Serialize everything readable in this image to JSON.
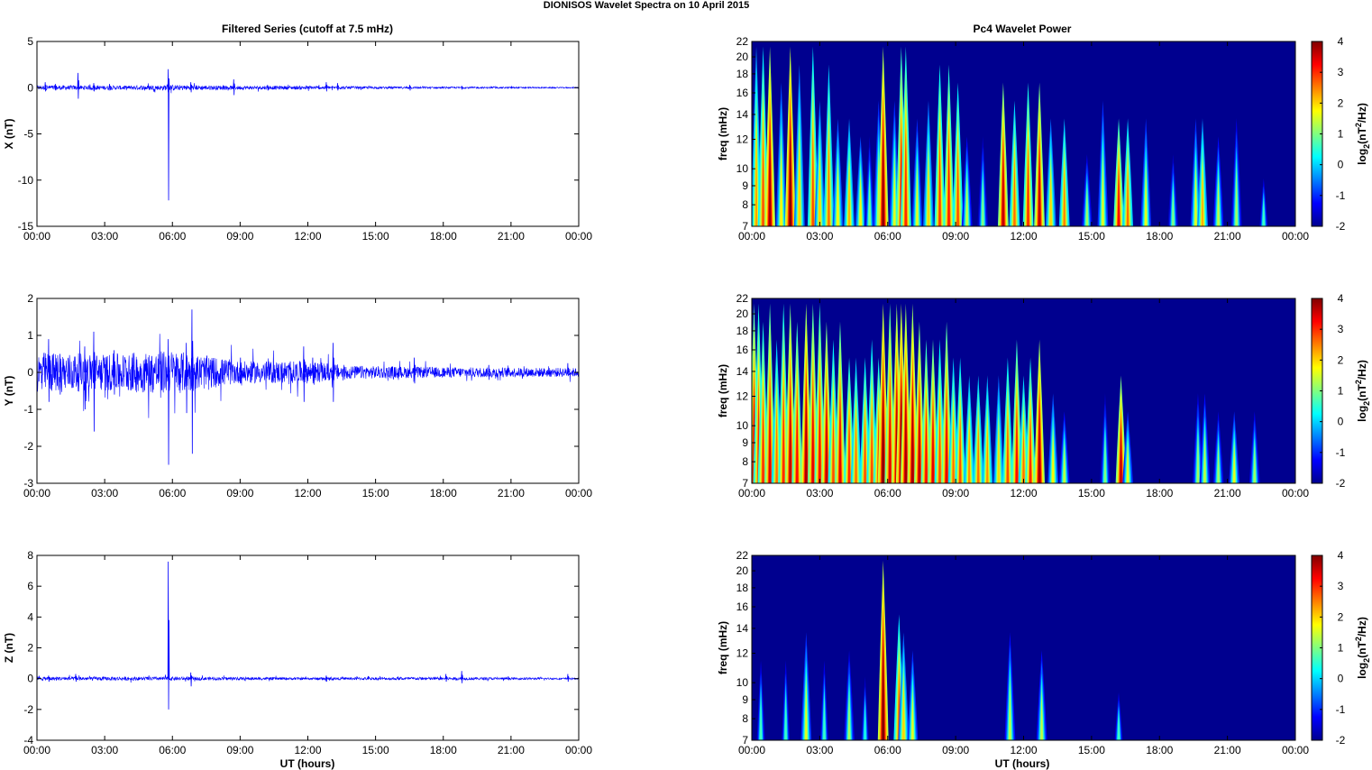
{
  "figure": {
    "main_title": "DIONISOS Wavelet Spectra on 10 April     2015",
    "left_title": "Filtered Series (cutoff at 7.5 mHz)",
    "right_title": "Pc4 Wavelet Power",
    "xlabel": "UT (hours)"
  },
  "colors": {
    "trace": "#0000ff",
    "axis": "#000000",
    "bg_spectrum": "#00008f"
  },
  "chart_data": [
    {
      "type": "line",
      "name": "x-series",
      "ylabel": "X (nT)",
      "x_ticks": [
        "00:00",
        "03:00",
        "06:00",
        "09:00",
        "12:00",
        "15:00",
        "18:00",
        "21:00",
        "00:00"
      ],
      "xlim": [
        0,
        24
      ],
      "ylim": [
        -15,
        5
      ],
      "y_ticks": [
        5,
        0,
        -5,
        -10,
        -15
      ],
      "spikes": [
        [
          0.35,
          0.6,
          -0.4
        ],
        [
          0.8,
          0.4,
          -0.3
        ],
        [
          1.8,
          1.6,
          -1.2
        ],
        [
          2.5,
          0.5,
          -0.4
        ],
        [
          3.2,
          0.4,
          -0.3
        ],
        [
          5.8,
          2.0,
          -12.2
        ],
        [
          6.8,
          0.6,
          -0.5
        ],
        [
          8.7,
          0.9,
          -0.8
        ],
        [
          10.2,
          0.3,
          -0.3
        ],
        [
          12.8,
          0.6,
          -0.4
        ],
        [
          13.3,
          0.5,
          -0.3
        ],
        [
          16.5,
          0.3,
          -0.3
        ],
        [
          18.8,
          0.2,
          -0.2
        ],
        [
          21.0,
          0.1,
          -0.1
        ]
      ],
      "noise": [
        [
          0,
          0.25
        ],
        [
          4,
          0.22
        ],
        [
          6,
          0.3
        ],
        [
          9,
          0.2
        ],
        [
          12,
          0.2
        ],
        [
          15,
          0.12
        ],
        [
          18,
          0.1
        ],
        [
          21,
          0.08
        ],
        [
          24,
          0.06
        ]
      ]
    },
    {
      "type": "line",
      "name": "y-series",
      "ylabel": "Y (nT)",
      "x_ticks": [
        "00:00",
        "03:00",
        "06:00",
        "09:00",
        "12:00",
        "15:00",
        "18:00",
        "21:00",
        "00:00"
      ],
      "xlim": [
        0,
        24
      ],
      "ylim": [
        -3,
        2
      ],
      "y_ticks": [
        2,
        1,
        0,
        -1,
        -2,
        -3
      ],
      "spikes": [
        [
          0.5,
          0.9,
          -0.8
        ],
        [
          1.0,
          0.5,
          -0.6
        ],
        [
          2.1,
          0.7,
          -1.0
        ],
        [
          2.5,
          1.1,
          -1.6
        ],
        [
          3.4,
          0.6,
          -0.6
        ],
        [
          4.2,
          0.4,
          -0.4
        ],
        [
          5.8,
          0.9,
          -2.5
        ],
        [
          6.6,
          0.8,
          -1.1
        ],
        [
          6.85,
          1.7,
          -2.2
        ],
        [
          9.0,
          0.4,
          -0.3
        ],
        [
          11.8,
          0.7,
          -0.8
        ],
        [
          12.2,
          0.4,
          -0.3
        ],
        [
          13.1,
          0.8,
          -0.8
        ],
        [
          16.7,
          0.4,
          -0.3
        ],
        [
          18.0,
          0.1,
          -0.1
        ],
        [
          20.0,
          0.2,
          -0.2
        ],
        [
          23.5,
          0.25,
          -0.1
        ]
      ],
      "noise": [
        [
          0,
          0.55
        ],
        [
          3,
          0.5
        ],
        [
          6,
          0.6
        ],
        [
          7.5,
          0.45
        ],
        [
          9,
          0.3
        ],
        [
          12,
          0.3
        ],
        [
          14,
          0.18
        ],
        [
          18,
          0.14
        ],
        [
          21,
          0.13
        ],
        [
          24,
          0.12
        ]
      ]
    },
    {
      "type": "line",
      "name": "z-series",
      "ylabel": "Z (nT)",
      "x_ticks": [
        "00:00",
        "03:00",
        "06:00",
        "09:00",
        "12:00",
        "15:00",
        "18:00",
        "21:00",
        "00:00"
      ],
      "xlim": [
        0,
        24
      ],
      "ylim": [
        -4,
        8
      ],
      "y_ticks": [
        8,
        6,
        4,
        2,
        0,
        -2,
        -4
      ],
      "spikes": [
        [
          0.5,
          0.2,
          -0.2
        ],
        [
          1.7,
          0.3,
          -0.2
        ],
        [
          5.8,
          7.6,
          -2.0
        ],
        [
          6.8,
          0.4,
          -0.5
        ],
        [
          12.8,
          0.2,
          -0.2
        ],
        [
          18.1,
          0.3,
          -0.2
        ],
        [
          18.8,
          0.5,
          -0.3
        ],
        [
          23.5,
          0.3,
          -0.2
        ]
      ],
      "noise": [
        [
          0,
          0.12
        ],
        [
          6,
          0.12
        ],
        [
          8,
          0.1
        ],
        [
          12,
          0.08
        ],
        [
          18,
          0.1
        ],
        [
          24,
          0.05
        ]
      ]
    },
    {
      "type": "heatmap",
      "name": "x-wavelet",
      "ylabel": "freq (mHz)",
      "colorbar_label": "log2(nT2/Hz)",
      "x_ticks": [
        "00:00",
        "03:00",
        "06:00",
        "09:00",
        "12:00",
        "15:00",
        "18:00",
        "21:00",
        "00:00"
      ],
      "xlim": [
        0,
        24
      ],
      "y_ticks": [
        22,
        20,
        18,
        16,
        14,
        12,
        10,
        9,
        8,
        7
      ],
      "ylim": [
        7,
        22
      ],
      "clim": [
        -2,
        4
      ],
      "c_ticks": [
        4,
        3,
        2,
        1,
        0,
        -1,
        -2
      ],
      "events": [
        [
          0.2,
          2.3,
          1.0
        ],
        [
          0.5,
          2.8,
          1.0
        ],
        [
          0.8,
          3.8,
          1.0
        ],
        [
          1.3,
          1.8,
          0.8
        ],
        [
          1.7,
          4.0,
          1.0
        ],
        [
          2.1,
          2.0,
          0.9
        ],
        [
          2.7,
          2.8,
          1.0
        ],
        [
          3.0,
          2.0,
          0.7
        ],
        [
          3.4,
          2.6,
          0.9
        ],
        [
          3.8,
          1.8,
          0.6
        ],
        [
          4.3,
          2.2,
          0.6
        ],
        [
          4.8,
          1.8,
          0.5
        ],
        [
          5.2,
          1.0,
          0.5
        ],
        [
          5.6,
          1.6,
          0.7
        ],
        [
          5.8,
          3.9,
          1.0
        ],
        [
          6.3,
          1.6,
          0.7
        ],
        [
          6.6,
          3.2,
          1.0
        ],
        [
          6.8,
          3.0,
          1.0
        ],
        [
          7.3,
          1.6,
          0.6
        ],
        [
          7.8,
          2.0,
          0.7
        ],
        [
          8.3,
          2.9,
          0.9
        ],
        [
          8.7,
          3.1,
          0.9
        ],
        [
          9.1,
          2.8,
          0.8
        ],
        [
          9.5,
          1.4,
          0.5
        ],
        [
          10.2,
          1.0,
          0.5
        ],
        [
          11.1,
          3.6,
          0.8
        ],
        [
          11.6,
          2.6,
          0.7
        ],
        [
          12.2,
          3.0,
          0.8
        ],
        [
          12.7,
          3.6,
          0.8
        ],
        [
          13.2,
          2.0,
          0.6
        ],
        [
          13.8,
          2.5,
          0.6
        ],
        [
          14.8,
          1.2,
          0.4
        ],
        [
          15.5,
          1.6,
          0.7
        ],
        [
          16.2,
          3.2,
          0.6
        ],
        [
          16.6,
          2.6,
          0.6
        ],
        [
          17.4,
          1.6,
          0.6
        ],
        [
          18.6,
          1.0,
          0.4
        ],
        [
          19.6,
          1.6,
          0.6
        ],
        [
          19.9,
          2.2,
          0.6
        ],
        [
          20.6,
          1.4,
          0.5
        ],
        [
          21.4,
          1.2,
          0.6
        ],
        [
          22.6,
          0.6,
          0.3
        ]
      ]
    },
    {
      "type": "heatmap",
      "name": "y-wavelet",
      "ylabel": "freq (mHz)",
      "colorbar_label": "log2(nT2/Hz)",
      "x_ticks": [
        "00:00",
        "03:00",
        "06:00",
        "09:00",
        "12:00",
        "15:00",
        "18:00",
        "21:00",
        "00:00"
      ],
      "xlim": [
        0,
        24
      ],
      "y_ticks": [
        22,
        20,
        18,
        16,
        14,
        12,
        10,
        9,
        8,
        7
      ],
      "ylim": [
        7,
        22
      ],
      "clim": [
        -2,
        4
      ],
      "c_ticks": [
        4,
        3,
        2,
        1,
        0,
        -1,
        -2
      ],
      "events": [
        [
          0.1,
          3.4,
          1.0
        ],
        [
          0.3,
          3.0,
          1.0
        ],
        [
          0.5,
          3.0,
          0.9
        ],
        [
          0.8,
          3.4,
          1.0
        ],
        [
          1.1,
          2.6,
          0.8
        ],
        [
          1.4,
          3.0,
          1.0
        ],
        [
          1.7,
          3.6,
          1.0
        ],
        [
          2.0,
          3.2,
          0.9
        ],
        [
          2.4,
          3.8,
          1.0
        ],
        [
          2.7,
          3.4,
          1.0
        ],
        [
          3.0,
          3.2,
          1.0
        ],
        [
          3.3,
          3.6,
          0.9
        ],
        [
          3.6,
          2.8,
          0.8
        ],
        [
          3.9,
          3.4,
          0.9
        ],
        [
          4.3,
          3.0,
          0.7
        ],
        [
          4.6,
          2.6,
          0.7
        ],
        [
          5.0,
          2.8,
          0.7
        ],
        [
          5.3,
          2.8,
          0.8
        ],
        [
          5.6,
          3.0,
          0.7
        ],
        [
          5.8,
          4.0,
          1.0
        ],
        [
          6.1,
          3.4,
          1.0
        ],
        [
          6.4,
          3.8,
          1.0
        ],
        [
          6.6,
          4.0,
          1.0
        ],
        [
          6.8,
          3.8,
          1.0
        ],
        [
          7.1,
          3.8,
          1.0
        ],
        [
          7.4,
          3.6,
          0.9
        ],
        [
          7.7,
          3.2,
          0.8
        ],
        [
          8.0,
          3.4,
          0.8
        ],
        [
          8.3,
          2.8,
          0.8
        ],
        [
          8.6,
          3.4,
          0.9
        ],
        [
          8.9,
          2.6,
          0.7
        ],
        [
          9.2,
          2.8,
          0.7
        ],
        [
          9.6,
          2.4,
          0.6
        ],
        [
          10.0,
          2.6,
          0.6
        ],
        [
          10.4,
          2.4,
          0.6
        ],
        [
          10.9,
          2.0,
          0.6
        ],
        [
          11.3,
          2.8,
          0.7
        ],
        [
          11.7,
          3.2,
          0.8
        ],
        [
          12.0,
          2.6,
          0.6
        ],
        [
          12.3,
          3.0,
          0.7
        ],
        [
          12.7,
          3.8,
          0.8
        ],
        [
          13.3,
          1.8,
          0.5
        ],
        [
          13.8,
          1.4,
          0.4
        ],
        [
          15.6,
          1.0,
          0.5
        ],
        [
          16.3,
          3.6,
          0.6
        ],
        [
          16.6,
          1.6,
          0.4
        ],
        [
          19.7,
          1.2,
          0.5
        ],
        [
          20.0,
          1.4,
          0.5
        ],
        [
          20.6,
          1.2,
          0.4
        ],
        [
          21.3,
          1.6,
          0.4
        ],
        [
          22.2,
          1.2,
          0.4
        ]
      ]
    },
    {
      "type": "heatmap",
      "name": "z-wavelet",
      "ylabel": "freq (mHz)",
      "colorbar_label": "log2(nT2/Hz)",
      "x_ticks": [
        "00:00",
        "03:00",
        "06:00",
        "09:00",
        "12:00",
        "15:00",
        "18:00",
        "21:00",
        "00:00"
      ],
      "xlim": [
        0,
        24
      ],
      "y_ticks": [
        22,
        20,
        18,
        16,
        14,
        12,
        10,
        9,
        8,
        7
      ],
      "ylim": [
        7,
        22
      ],
      "clim": [
        -2,
        4
      ],
      "c_ticks": [
        4,
        3,
        2,
        1,
        0,
        -1,
        -2
      ],
      "events": [
        [
          0.4,
          0.6,
          0.5
        ],
        [
          1.5,
          0.6,
          0.5
        ],
        [
          2.4,
          1.6,
          0.6
        ],
        [
          3.2,
          0.6,
          0.5
        ],
        [
          4.3,
          1.2,
          0.5
        ],
        [
          5.0,
          0.4,
          0.4
        ],
        [
          5.8,
          4.0,
          1.0
        ],
        [
          6.5,
          2.8,
          0.7
        ],
        [
          6.7,
          2.0,
          0.6
        ],
        [
          7.1,
          1.6,
          0.5
        ],
        [
          11.4,
          1.4,
          0.6
        ],
        [
          12.8,
          1.4,
          0.5
        ],
        [
          16.2,
          0.6,
          0.3
        ]
      ]
    }
  ]
}
